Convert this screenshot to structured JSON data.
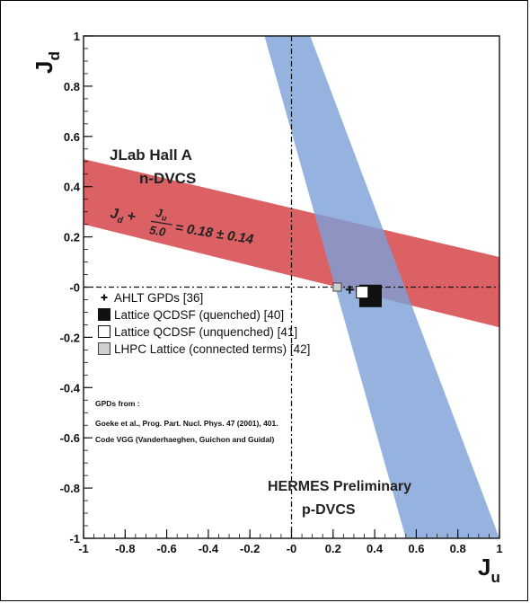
{
  "chart_data": {
    "type": "scatter",
    "xlabel_main": "J",
    "xlabel_sub": "u",
    "ylabel_main": "J",
    "ylabel_sub": "d",
    "xlim": [
      -1,
      1
    ],
    "ylim": [
      -1,
      1
    ],
    "x_ticks": [
      {
        "v": -1,
        "label": "-1"
      },
      {
        "v": -0.8,
        "label": "-0.8"
      },
      {
        "v": -0.6,
        "label": "-0.6"
      },
      {
        "v": -0.4,
        "label": "-0.4"
      },
      {
        "v": -0.2,
        "label": "-0.2"
      },
      {
        "v": 0,
        "label": "-0"
      },
      {
        "v": 0.2,
        "label": "0.2"
      },
      {
        "v": 0.4,
        "label": "0.4"
      },
      {
        "v": 0.6,
        "label": "0.6"
      },
      {
        "v": 0.8,
        "label": "0.8"
      },
      {
        "v": 1,
        "label": "1"
      }
    ],
    "y_ticks": [
      {
        "v": 1,
        "label": "1"
      },
      {
        "v": 0.8,
        "label": "0.8"
      },
      {
        "v": 0.6,
        "label": "0.6"
      },
      {
        "v": 0.4,
        "label": "0.4"
      },
      {
        "v": 0.2,
        "label": "0.2"
      },
      {
        "v": 0,
        "label": "-0"
      },
      {
        "v": -0.2,
        "label": "-0.2"
      },
      {
        "v": -0.4,
        "label": "-0.4"
      },
      {
        "v": -0.6,
        "label": "-0.6"
      },
      {
        "v": -0.8,
        "label": "-0.8"
      },
      {
        "v": -1,
        "label": "-1"
      }
    ],
    "bands": [
      {
        "name": "n-DVCS",
        "color": "#d9595c",
        "polygon": [
          [
            -1,
            0.51
          ],
          [
            1,
            0.12
          ],
          [
            1,
            -0.16
          ],
          [
            -1,
            0.25
          ]
        ]
      },
      {
        "name": "p-DVCS",
        "color": "#7ca0d8",
        "polygon": [
          [
            -0.13,
            1
          ],
          [
            0.09,
            1
          ],
          [
            1,
            -1
          ],
          [
            0.55,
            -1
          ]
        ]
      }
    ],
    "points": [
      {
        "name": "AHLT GPDs [36]",
        "x": 0.28,
        "y": -0.01,
        "marker": "plus",
        "color": "#111111"
      },
      {
        "name": "Lattice QCDSF (quenched) [40]",
        "x": 0.38,
        "y": -0.035,
        "marker": "filled-square",
        "color": "#111111"
      },
      {
        "name": "Lattice QCDSF (unquenched) [41]",
        "x": 0.34,
        "y": -0.02,
        "marker": "open-square",
        "color": "#ffffff"
      },
      {
        "name": "LHPC Lattice (connected terms) [42]",
        "x": 0.22,
        "y": 0.0,
        "marker": "grey-square",
        "color": "#cfcfcf"
      }
    ],
    "legend": {
      "placement": "center-left",
      "entries": [
        {
          "label": "AHLT GPDs [36]",
          "marker": "plus"
        },
        {
          "label": "Lattice QCDSF (quenched) [40]",
          "marker": "filled-square"
        },
        {
          "label": "Lattice QCDSF (unquenched) [41]",
          "marker": "open-square"
        },
        {
          "label": "LHPC Lattice (connected terms) [42]",
          "marker": "grey-square"
        }
      ]
    },
    "annotations": {
      "jlab_line1": "JLab Hall A",
      "jlab_line2": "n-DVCS",
      "formula_jd": "J",
      "formula_jd_sub": "d",
      "formula_plus": "+",
      "formula_ju": "J",
      "formula_ju_sub": "u",
      "formula_den": "5.0",
      "formula_rhs": "= 0.18 ± 0.14",
      "gpds_from": "GPDs from :",
      "goeke_ref": "Goeke et al., Prog. Part. Nucl. Phys. 47 (2001), 401.",
      "vgg_ref": "Code VGG (Vanderhaeghen, Guichon and Guidal)",
      "hermes_line1": "HERMES Preliminary",
      "hermes_line2": "p-DVCS"
    },
    "grid": false
  }
}
